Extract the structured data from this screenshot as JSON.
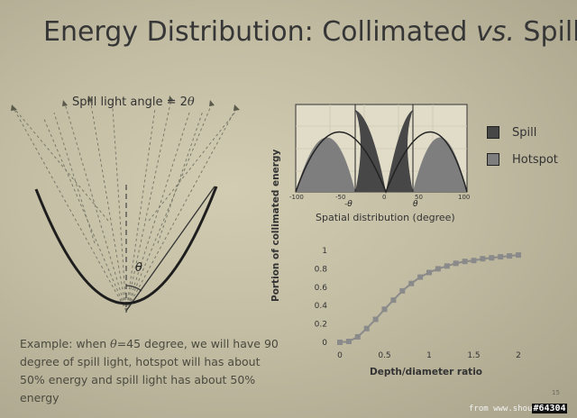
{
  "slide": {
    "title_prefix": "Energy Distribution: Collimated ",
    "title_vs": "vs.",
    "title_suffix": " Spill",
    "spill_label_prefix": "Spill light angle = 2",
    "spill_label_symbol": "θ",
    "theta_symbol": "θ",
    "example_prefix": "Example: when ",
    "example_theta": "θ",
    "example_value": "=45",
    "example_suffix": " degree, we will have 90 degree of spill light, hotspot will has about 50% energy and spill light has about 50% energy",
    "page_number": "15"
  },
  "distribution_chart": {
    "xlabel": "Spatial distribution (degree)",
    "tick_labels": [
      "-100",
      "-50",
      "0",
      "50",
      "100"
    ],
    "theta_marks": [
      "-θ",
      "θ"
    ],
    "legend": [
      {
        "label": "Spill",
        "color": "#474747"
      },
      {
        "label": "Hotspot",
        "color": "#7e7e7e"
      }
    ]
  },
  "chart_data": {
    "type": "line",
    "title": "",
    "xlabel": "Depth/diameter ratio",
    "ylabel": "Portion of collimated energy",
    "xlim": [
      0,
      2
    ],
    "ylim": [
      0,
      1
    ],
    "xticks": [
      "0",
      "0.5",
      "1",
      "1.5",
      "2"
    ],
    "yticks": [
      "0",
      "0.2",
      "0.4",
      "0.6",
      "0.8",
      "1"
    ],
    "color": "#8a8a8a",
    "x": [
      0,
      0.1,
      0.2,
      0.3,
      0.4,
      0.5,
      0.6,
      0.7,
      0.8,
      0.9,
      1.0,
      1.1,
      1.2,
      1.3,
      1.4,
      1.5,
      1.6,
      1.7,
      1.8,
      1.9,
      2.0
    ],
    "series": [
      {
        "values": [
          0,
          0.01,
          0.06,
          0.15,
          0.25,
          0.36,
          0.46,
          0.56,
          0.64,
          0.71,
          0.76,
          0.8,
          0.83,
          0.86,
          0.88,
          0.89,
          0.91,
          0.92,
          0.93,
          0.94,
          0.95
        ]
      }
    ]
  },
  "watermark": {
    "text": "from www.shou",
    "tag": "#64304"
  }
}
